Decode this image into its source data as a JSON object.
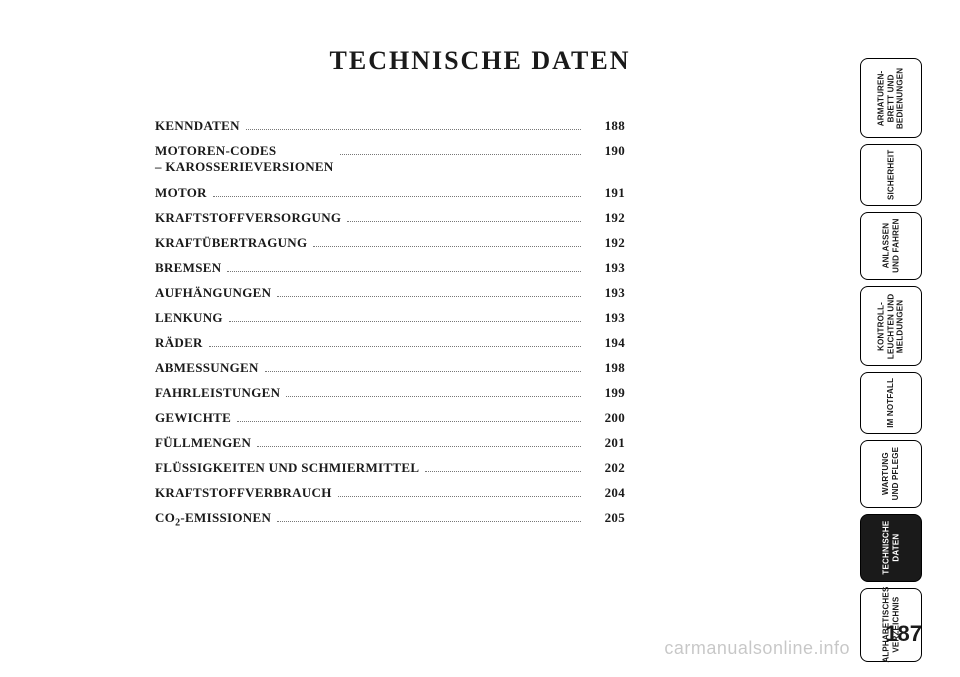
{
  "title": "TECHNISCHE DATEN",
  "toc": [
    {
      "label": "KENNDATEN",
      "page": "188",
      "lines": 1
    },
    {
      "label": "MOTOREN-CODES\n– KAROSSERIEVERSIONEN",
      "page": "190",
      "lines": 2
    },
    {
      "label": "MOTOR",
      "page": "191",
      "lines": 1
    },
    {
      "label": "KRAFTSTOFFVERSORGUNG",
      "page": "192",
      "lines": 1
    },
    {
      "label": "KRAFTÜBERTRAGUNG",
      "page": "192",
      "lines": 1
    },
    {
      "label": "BREMSEN",
      "page": "193",
      "lines": 1
    },
    {
      "label": "AUFHÄNGUNGEN",
      "page": "193",
      "lines": 1
    },
    {
      "label": "LENKUNG",
      "page": "193",
      "lines": 1
    },
    {
      "label": "RÄDER",
      "page": "194",
      "lines": 1
    },
    {
      "label": "ABMESSUNGEN",
      "page": "198",
      "lines": 1
    },
    {
      "label": "FAHRLEISTUNGEN",
      "page": "199",
      "lines": 1
    },
    {
      "label": "GEWICHTE",
      "page": "200",
      "lines": 1
    },
    {
      "label": "FÜLLMENGEN",
      "page": "201",
      "lines": 1
    },
    {
      "label": "FLÜSSIGKEITEN UND SCHMIERMITTEL",
      "page": "202",
      "lines": 1
    },
    {
      "label": "KRAFTSTOFFVERBRAUCH",
      "page": "204",
      "lines": 1
    },
    {
      "label_html": "CO<span class=\"co2-sub\">2</span>-EMISSIONEN",
      "page": "205",
      "lines": 1
    }
  ],
  "tabs": [
    {
      "label": "ARMATUREN-\nBRETT UND\nBEDIENUNGEN",
      "active": false,
      "h": "h80"
    },
    {
      "label": "SICHERHEIT",
      "active": false,
      "h": "h62"
    },
    {
      "label": "ANLASSEN\nUND FAHREN",
      "active": false,
      "h": "h68"
    },
    {
      "label": "KONTROLL-\nLEUCHTEN UND\nMELDUNGEN",
      "active": false,
      "h": "h80"
    },
    {
      "label": "IM NOTFALL",
      "active": false,
      "h": "h62"
    },
    {
      "label": "WARTUNG\nUND PFLEGE",
      "active": false,
      "h": "h68"
    },
    {
      "label": "TECHNISCHE\nDATEN",
      "active": true,
      "h": "h68"
    },
    {
      "label": "ALPHABETISCHES\nVERZEICHNIS",
      "active": false,
      "h": "h74"
    }
  ],
  "page_number": "187",
  "watermark": "carmanualsonline.info",
  "colors": {
    "text": "#1a1a1a",
    "background": "#ffffff",
    "tab_active_bg": "#1a1a1a",
    "tab_active_fg": "#ffffff",
    "leader": "#777777",
    "watermark": "rgba(0,0,0,0.22)"
  }
}
